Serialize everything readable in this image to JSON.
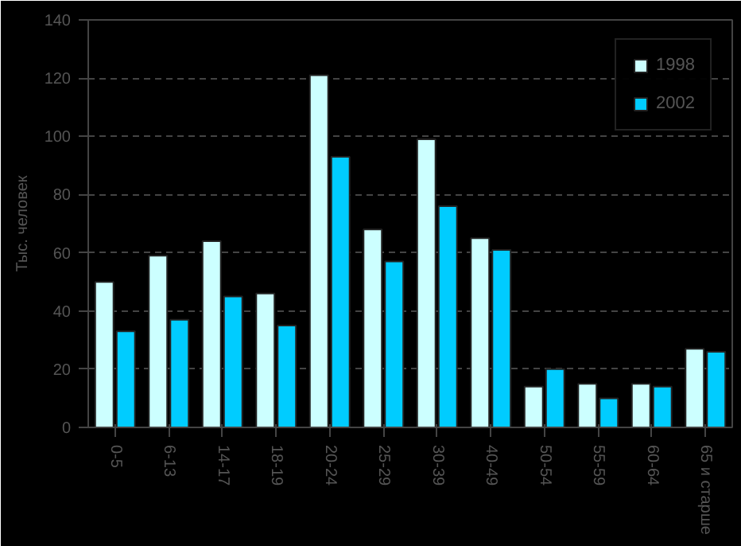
{
  "chart_data": {
    "type": "bar",
    "ylabel": "Тыс. человек",
    "categories": [
      "0-5",
      "6-13",
      "14-17",
      "18-19",
      "20-24",
      "25-29",
      "30-39",
      "40-49",
      "50-54",
      "55-59",
      "60-64",
      "65 и старше"
    ],
    "series": [
      {
        "name": "1998",
        "color": "#ccffff",
        "values": [
          50,
          59,
          64,
          46,
          121,
          68,
          99,
          65,
          14,
          15,
          15,
          27
        ]
      },
      {
        "name": "2002",
        "color": "#00ccff",
        "values": [
          33,
          37,
          45,
          35,
          93,
          57,
          76,
          61,
          20,
          10,
          14,
          26
        ]
      }
    ],
    "ylim": [
      0,
      140
    ],
    "yticks": [
      0,
      20,
      40,
      60,
      80,
      100,
      120,
      140
    ],
    "grid": "y",
    "legend": "top right"
  }
}
